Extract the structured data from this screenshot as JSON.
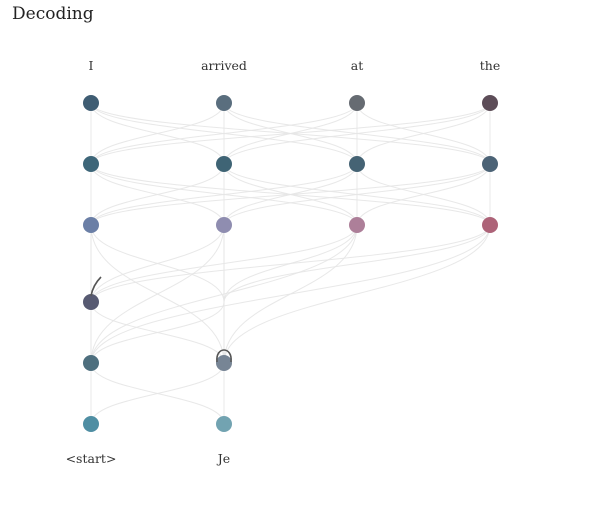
{
  "title": "Decoding",
  "encoder": {
    "tokens": [
      "I",
      "arrived",
      "at",
      "the"
    ],
    "node_colors": [
      [
        "#3f5d73",
        "#3e6679",
        "#6b7fa6"
      ],
      [
        "#5a6e7e",
        "#3f6475",
        "#8f8db0"
      ],
      [
        "#666b72",
        "#456374",
        "#ad7f99"
      ],
      [
        "#5d4d58",
        "#4c6376",
        "#ad6378"
      ]
    ]
  },
  "decoder": {
    "tokens": [
      "<start>",
      "Je"
    ],
    "node_colors": [
      [
        "#575a72",
        "#4e6f7e",
        "#4f8ea3"
      ],
      [
        "",
        "#778595",
        "#72a3b1"
      ]
    ]
  },
  "connection_color": "#e6e6e6",
  "edge_color": "#555555"
}
